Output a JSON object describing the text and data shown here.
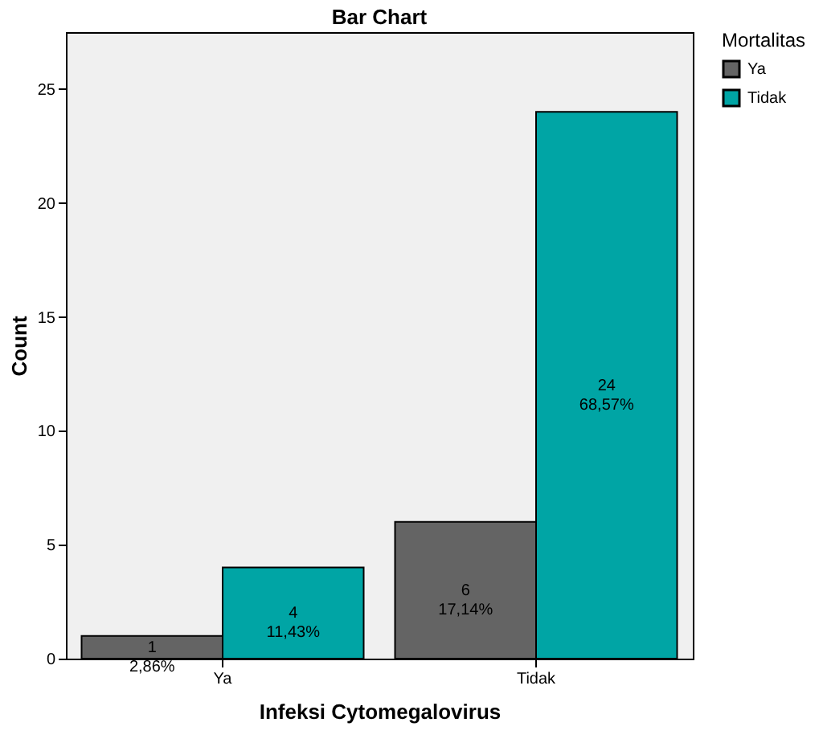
{
  "chart_data": {
    "type": "bar",
    "title": "Bar Chart",
    "xlabel": "Infeksi Cytomegalovirus",
    "ylabel": "Count",
    "legend_title": "Mortalitas",
    "legend": "top right",
    "categories": [
      "Ya",
      "Tidak"
    ],
    "series": [
      {
        "name": "Ya",
        "color": "#646464",
        "values": [
          1,
          6
        ],
        "value_labels": [
          "1\n2,86%",
          "6\n17,14%"
        ]
      },
      {
        "name": "Tidak",
        "color": "#00a5a5",
        "values": [
          4,
          24
        ],
        "value_labels": [
          "4\n11,43%",
          "24\n68,57%"
        ]
      }
    ],
    "ylim": [
      0,
      27.5
    ],
    "yticks": [
      0,
      5,
      10,
      15,
      20,
      25
    ],
    "grid": false
  }
}
